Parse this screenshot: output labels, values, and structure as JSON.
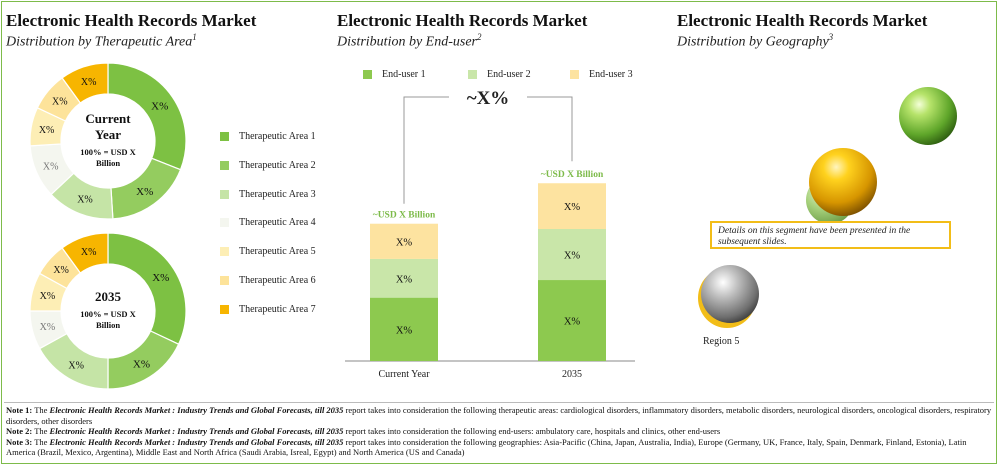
{
  "panels": {
    "therapeutic": {
      "title": "Electronic Health Records Market",
      "subtitle": "Distribution by Therapeutic Area",
      "note_ref": "1"
    },
    "enduser": {
      "title": "Electronic Health Records Market",
      "subtitle": "Distribution by End-user",
      "note_ref": "2"
    },
    "geography": {
      "title": "Electronic Health Records Market",
      "subtitle": "Distribution by Geography",
      "note_ref": "3"
    }
  },
  "colors": {
    "ta1": "#7dc143",
    "ta2": "#94cc5f",
    "ta3": "#c5e4a6",
    "ta4": "#f4f6ef",
    "ta5": "#fdeeb5",
    "ta6": "#fde39a",
    "ta7": "#f7b500",
    "eu1": "#8dc94f",
    "eu2": "#c9e6a9",
    "eu3": "#fde3a0",
    "frame": "#7dbb4a",
    "callout_border": "#f2bd18"
  },
  "chart_data": [
    {
      "type": "pie",
      "title": "Current Year",
      "center_label": "Current Year",
      "center_value": "100% = USD X Billion",
      "categories": [
        "Therapeutic Area 1",
        "Therapeutic Area 2",
        "Therapeutic Area 3",
        "Therapeutic Area 4",
        "Therapeutic Area 5",
        "Therapeutic Area 6",
        "Therapeutic Area 7"
      ],
      "values": [
        31,
        18,
        14,
        11,
        8,
        8,
        10
      ],
      "labels": [
        "X%",
        "X%",
        "X%",
        "X%",
        "X%",
        "X%",
        "X%"
      ]
    },
    {
      "type": "pie",
      "title": "2035",
      "center_label": "2035",
      "center_value": "100% = USD X Billion",
      "categories": [
        "Therapeutic Area 1",
        "Therapeutic Area 2",
        "Therapeutic Area 3",
        "Therapeutic Area 4",
        "Therapeutic Area 5",
        "Therapeutic Area 6",
        "Therapeutic Area 7"
      ],
      "values": [
        32,
        18,
        17,
        8,
        8,
        7,
        10
      ],
      "labels": [
        "X%",
        "X%",
        "X%",
        "X%",
        "X%",
        "X%",
        "X%"
      ]
    },
    {
      "type": "bar",
      "stacked": true,
      "categories": [
        "Current Year",
        "2035"
      ],
      "series": [
        {
          "name": "End-user 1",
          "values": [
            36,
            46
          ],
          "labels": [
            "X%",
            "X%"
          ]
        },
        {
          "name": "End-user 2",
          "values": [
            22,
            29
          ],
          "labels": [
            "X%",
            "X%"
          ]
        },
        {
          "name": "End-user 3",
          "values": [
            20,
            26
          ],
          "labels": [
            "X%",
            "X%"
          ]
        }
      ],
      "totals_labels": [
        "~USD X Billion",
        "~USD X Billion"
      ],
      "growth_label": "~X%",
      "ylim": [
        0,
        125
      ]
    }
  ],
  "legend_therapeutic": [
    "Therapeutic Area 1",
    "Therapeutic Area 2",
    "Therapeutic Area 3",
    "Therapeutic Area 4",
    "Therapeutic Area 5",
    "Therapeutic Area 6",
    "Therapeutic Area 7"
  ],
  "legend_enduser": [
    "End-user 1",
    "End-user 2",
    "End-user 3"
  ],
  "geography": {
    "callout": "Details on this segment have been presented in the subsequent slides.",
    "region_label": "Region 5"
  },
  "notes": [
    {
      "label": "Note 1:",
      "pre": "The",
      "report": "Electronic Health Records Market : Industry Trends and Global Forecasts, till 2035",
      "text": "report takes into consideration the following therapeutic areas: cardiological disorders, inflammatory disorders, metabolic disorders, neurological disorders, oncological disorders, respiratory disorders, other disorders"
    },
    {
      "label": "Note 2:",
      "pre": "The",
      "report": "Electronic Health Records Market : Industry Trends and Global Forecasts, till 2035",
      "text": "report takes into consideration the following end-users: ambulatory care, hospitals and clinics, other end-users"
    },
    {
      "label": "Note 3:",
      "pre": "The",
      "report": "Electronic Health Records Market : Industry Trends and Global Forecasts, till 2035",
      "text": "report takes into consideration the following geographies: Asia-Pacific (China, Japan, Australia, India), Europe (Germany, UK, France, Italy, Spain, Denmark, Finland, Estonia), Latin America (Brazil, Mexico, Argentina), Middle East and North Africa (Saudi Arabia, Isreal, Egypt) and North America (US and Canada)"
    }
  ]
}
